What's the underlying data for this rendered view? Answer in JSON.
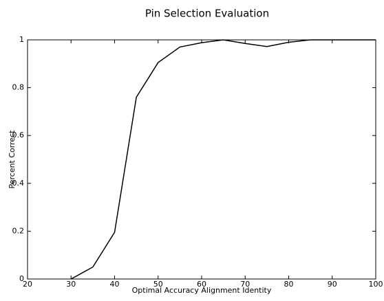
{
  "chart_data": {
    "type": "line",
    "title": "Pin Selection Evaluation",
    "x_label": "Optimal Accuracy Alignment Identity",
    "y_label": "Percent Correct",
    "x": [
      30,
      35,
      40,
      45,
      50,
      55,
      60,
      65,
      70,
      75,
      80,
      85,
      90,
      95,
      100
    ],
    "values": [
      0,
      0.05,
      0.195,
      0.76,
      0.905,
      0.97,
      0.988,
      1.0,
      0.985,
      0.972,
      0.99,
      1.0,
      1.0,
      1.0,
      1.0
    ],
    "color": "#000000",
    "xlim": [
      20,
      100
    ],
    "xticks": [
      20,
      30,
      40,
      50,
      60,
      70,
      80,
      90,
      100
    ],
    "ylim": [
      0,
      1
    ],
    "yticks": [
      0,
      0.2,
      0.4,
      0.6,
      0.8,
      1
    ],
    "grid": false
  }
}
